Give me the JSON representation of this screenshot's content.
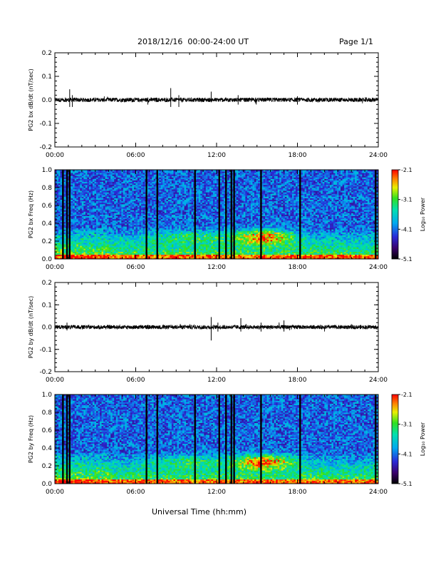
{
  "header": {
    "title": "2018/12/16  00:00-24:00 UT",
    "page": "Page 1/1"
  },
  "x_axis_title": "Universal Time (hh:mm)",
  "chart_data": [
    {
      "id": "bx-timeseries",
      "type": "line",
      "ylabel": "PG2 bx dB/dt (nT/sec)",
      "xlim": [
        0,
        24
      ],
      "ylim": [
        -0.2,
        0.2
      ],
      "xticks": [
        "00:00",
        "06:00",
        "12:00",
        "18:00",
        "24:00"
      ],
      "yticks": [
        "-0.2",
        "-0.1",
        "0.0",
        "0.1",
        "0.2"
      ],
      "series": [
        {
          "values_note": "noise around 0",
          "baseline": 0.0
        }
      ],
      "spikes": [
        [
          1.1,
          0.045,
          -0.03
        ],
        [
          1.3,
          0.02,
          -0.03
        ],
        [
          6.9,
          0.01,
          -0.02
        ],
        [
          8.6,
          0.05,
          -0.03
        ],
        [
          9.2,
          0.02,
          -0.03
        ],
        [
          11.6,
          0.035,
          -0.01
        ],
        [
          13.6,
          0.02,
          -0.02
        ],
        [
          14.9,
          0.01,
          -0.015
        ],
        [
          18.0,
          0.015,
          -0.02
        ]
      ]
    },
    {
      "id": "bx-spectrogram",
      "type": "heatmap",
      "ylabel": "PG2 bx Freq (Hz)",
      "xlim": [
        0,
        24
      ],
      "ylim": [
        0,
        1.0
      ],
      "xticks": [
        "00:00",
        "06:00",
        "12:00",
        "18:00",
        "24:00"
      ],
      "yticks": [
        "0.0",
        "0.2",
        "0.4",
        "0.6",
        "0.8",
        "1.0"
      ],
      "gaps": [
        0.6,
        0.9,
        1.1,
        6.8,
        7.6,
        10.4,
        12.2,
        12.7,
        13.1,
        13.3,
        15.3,
        18.2,
        23.8
      ],
      "colorbar": {
        "label": "Log₁₀ Power",
        "ticks": [
          "-2.1",
          "-3.1",
          "-4.1",
          "-5.1"
        ],
        "min": -5.1,
        "max": -2.1
      }
    },
    {
      "id": "by-timeseries",
      "type": "line",
      "ylabel": "PG2 by dB/dt (nT/sec)",
      "xlim": [
        0,
        24
      ],
      "ylim": [
        -0.2,
        0.2
      ],
      "xticks": [
        "00:00",
        "06:00",
        "12:00",
        "18:00",
        "24:00"
      ],
      "yticks": [
        "-0.2",
        "-0.1",
        "0.0",
        "0.1",
        "0.2"
      ],
      "series": [
        {
          "values_note": "noise around 0",
          "baseline": 0.0
        }
      ],
      "spikes": [
        [
          0.9,
          0.02,
          -0.015
        ],
        [
          11.6,
          0.045,
          -0.06
        ],
        [
          12.1,
          0.02,
          -0.02
        ],
        [
          13.8,
          0.04,
          -0.02
        ],
        [
          15.3,
          0.02,
          -0.02
        ],
        [
          17.0,
          0.03,
          -0.02
        ]
      ]
    },
    {
      "id": "by-spectrogram",
      "type": "heatmap",
      "ylabel": "PG2 by Freq (Hz)",
      "xlim": [
        0,
        24
      ],
      "ylim": [
        0,
        1.0
      ],
      "xticks": [
        "00:00",
        "06:00",
        "12:00",
        "18:00",
        "24:00"
      ],
      "yticks": [
        "0.0",
        "0.2",
        "0.4",
        "0.6",
        "0.8",
        "1.0"
      ],
      "gaps": [
        0.6,
        0.9,
        1.1,
        6.8,
        7.6,
        10.4,
        12.2,
        12.7,
        13.1,
        13.3,
        15.3,
        18.2,
        23.8
      ],
      "colorbar": {
        "label": "Log₁₀ Power",
        "ticks": [
          "-2.1",
          "-3.1",
          "-4.1",
          "-5.1"
        ],
        "min": -5.1,
        "max": -2.1
      }
    }
  ]
}
